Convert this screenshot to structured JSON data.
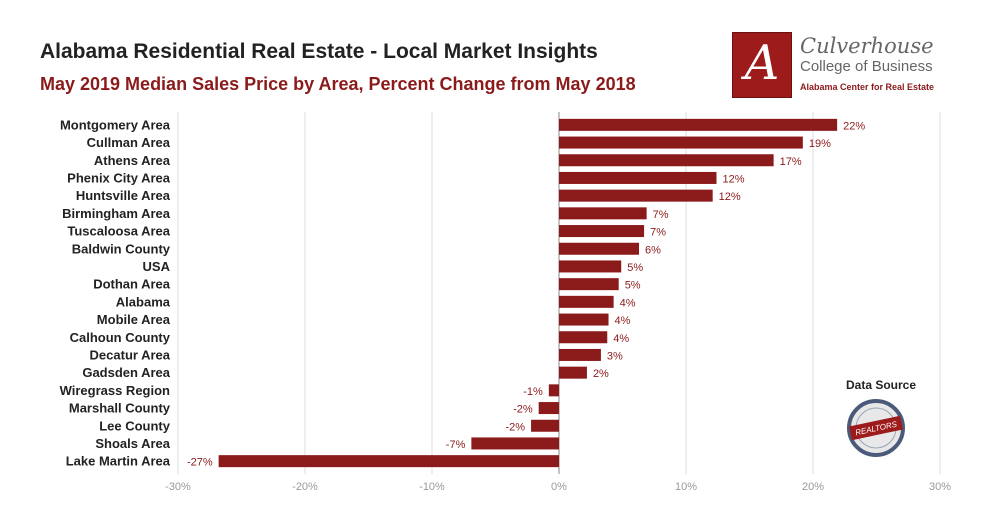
{
  "header": {
    "title": "Alabama Residential Real Estate - Local Market Insights",
    "subtitle": "May 2019 Median Sales Price by Area, Percent Change from May 2018"
  },
  "logo": {
    "letter": "A",
    "line1": "Culverhouse",
    "line2": "College of Business",
    "line3": "Alabama Center for Real Estate"
  },
  "source": {
    "label": "Data Source",
    "badge_text": "REALTORS"
  },
  "colors": {
    "bar": "#8b1a1a",
    "value_label": "#8b1a1a",
    "grid": "#dddddd",
    "axis_text": "#999999"
  },
  "chart_data": {
    "type": "bar",
    "orientation": "horizontal",
    "title": "May 2019 Median Sales Price by Area, Percent Change from May 2018",
    "categories": [
      "Montgomery Area",
      "Cullman Area",
      "Athens Area",
      "Phenix City Area",
      "Huntsville Area",
      "Birmingham Area",
      "Tuscaloosa Area",
      "Baldwin County",
      "USA",
      "Dothan Area",
      "Alabama",
      "Mobile Area",
      "Calhoun County",
      "Decatur Area",
      "Gadsden Area",
      "Wiregrass Region",
      "Marshall County",
      "Lee County",
      "Shoals Area",
      "Lake Martin Area"
    ],
    "values": [
      22,
      19,
      17,
      12,
      12,
      7,
      7,
      6,
      5,
      5,
      4,
      4,
      4,
      3,
      2,
      -1,
      -2,
      -2,
      -7,
      -27
    ],
    "precise_values": [
      21.9,
      19.2,
      16.9,
      12.4,
      12.1,
      6.9,
      6.7,
      6.3,
      4.9,
      4.7,
      4.3,
      3.9,
      3.8,
      3.3,
      2.2,
      -0.8,
      -1.6,
      -2.2,
      -6.9,
      -26.8
    ],
    "value_labels": [
      "22%",
      "19%",
      "17%",
      "12%",
      "12%",
      "7%",
      "7%",
      "6%",
      "5%",
      "5%",
      "4%",
      "4%",
      "4%",
      "3%",
      "2%",
      "-1%",
      "-2%",
      "-2%",
      "-7%",
      "-27%"
    ],
    "xlim": [
      -30,
      30
    ],
    "xticks": [
      -30,
      -20,
      -10,
      0,
      10,
      20,
      30
    ],
    "xtick_labels": [
      "-30%",
      "-20%",
      "-10%",
      "0%",
      "10%",
      "20%",
      "30%"
    ],
    "grid": true,
    "legend": "none"
  }
}
